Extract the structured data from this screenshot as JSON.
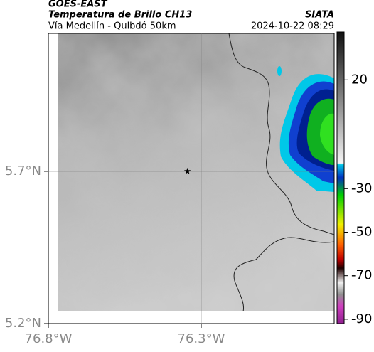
{
  "header": {
    "source": "GOES-EAST",
    "title": "Temperatura de Brillo CH13",
    "credit": "SIATA",
    "subtitle": "Vía Medellín - Quibdó 50km",
    "timestamp": "2024-10-22 08:29"
  },
  "map": {
    "xlim": [
      -76.8,
      -75.865
    ],
    "ylim": [
      5.2,
      6.153
    ],
    "xticks": [
      {
        "value": -76.8,
        "label": "76.8°W"
      },
      {
        "value": -76.3,
        "label": "76.3°W"
      }
    ],
    "yticks": [
      {
        "value": 5.2,
        "label": "5.2°N"
      },
      {
        "value": 5.7,
        "label": "5.7°N"
      }
    ],
    "marker": {
      "lon": -76.345,
      "lat": 5.7
    }
  },
  "colorbar": {
    "lim": [
      -92,
      42
    ],
    "ticks": [
      20,
      -30,
      -50,
      -70,
      -90
    ]
  }
}
